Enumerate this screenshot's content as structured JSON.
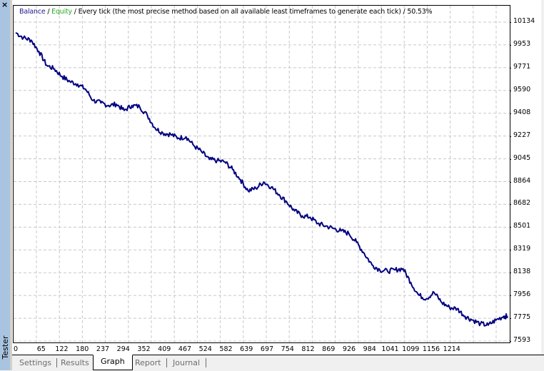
{
  "window": {
    "panel_title": "Tester",
    "close_glyph": "×"
  },
  "legend": {
    "balance": "Balance",
    "sep1": " / ",
    "equity": "Equity",
    "sep2": " / ",
    "description": "Every tick (the most precise method based on all available least timeframes to generate each tick)",
    "sep3": " / ",
    "quality": "50.53%",
    "balance_color": "#1a1a8c",
    "equity_color": "#2aa52a"
  },
  "chart_data": {
    "type": "line",
    "title": "Balance / Equity / Every tick (the most precise method based on all available least timeframes to generate each tick) / 50.53%",
    "xlabel": "",
    "ylabel": "",
    "x_ticks": [
      "0",
      "65",
      "122",
      "180",
      "237",
      "294",
      "352",
      "409",
      "467",
      "524",
      "582",
      "639",
      "697",
      "754",
      "812",
      "869",
      "926",
      "984",
      "1041",
      "1099",
      "1156",
      "1214"
    ],
    "y_ticks": [
      "10134",
      "9953",
      "9771",
      "9590",
      "9408",
      "9227",
      "9045",
      "8864",
      "8682",
      "8501",
      "8319",
      "8138",
      "7956",
      "7775",
      "7593"
    ],
    "ylim": [
      7593,
      10134
    ],
    "xlim": [
      0,
      1270
    ],
    "grid": true,
    "line_color": "#000080",
    "series": [
      {
        "name": "Balance",
        "x": [
          0,
          20,
          40,
          60,
          80,
          100,
          120,
          140,
          160,
          180,
          200,
          220,
          240,
          260,
          280,
          300,
          320,
          340,
          360,
          380,
          400,
          420,
          440,
          460,
          480,
          500,
          520,
          540,
          560,
          580,
          600,
          620,
          640,
          660,
          680,
          700,
          720,
          740,
          760,
          780,
          800,
          820,
          840,
          860,
          880,
          900,
          920,
          940,
          960,
          980,
          1000,
          1020,
          1040,
          1060,
          1080,
          1100,
          1120,
          1140,
          1160,
          1180,
          1200,
          1220,
          1240,
          1260,
          1270
        ],
        "values": [
          10050,
          10010,
          9990,
          9900,
          9790,
          9760,
          9700,
          9660,
          9640,
          9600,
          9510,
          9490,
          9470,
          9480,
          9430,
          9470,
          9460,
          9390,
          9290,
          9250,
          9240,
          9210,
          9220,
          9150,
          9100,
          9040,
          9030,
          9020,
          8960,
          8880,
          8790,
          8810,
          8860,
          8820,
          8760,
          8700,
          8630,
          8590,
          8580,
          8530,
          8510,
          8490,
          8470,
          8450,
          8380,
          8290,
          8200,
          8160,
          8150,
          8160,
          8170,
          8060,
          7960,
          7930,
          7980,
          7900,
          7860,
          7850,
          7790,
          7760,
          7730,
          7720,
          7760,
          7790,
          7790
        ]
      }
    ]
  },
  "tabs": [
    {
      "label": "Settings",
      "active": false
    },
    {
      "label": "Results",
      "active": false
    },
    {
      "label": "Graph",
      "active": true
    },
    {
      "label": "Report",
      "active": false
    },
    {
      "label": "Journal",
      "active": false
    }
  ]
}
